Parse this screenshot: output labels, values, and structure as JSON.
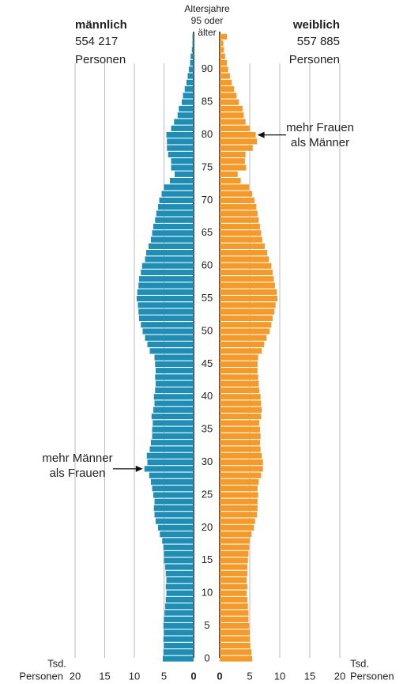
{
  "chart_data": {
    "type": "pyramid",
    "ylabel": "Altersjahre",
    "categories": [
      "0",
      null,
      null,
      null,
      null,
      "5",
      null,
      null,
      null,
      null,
      "10",
      null,
      null,
      null,
      null,
      "15",
      null,
      null,
      null,
      null,
      "20",
      null,
      null,
      null,
      null,
      "25",
      null,
      null,
      null,
      null,
      "30",
      null,
      null,
      null,
      null,
      "35",
      null,
      null,
      null,
      null,
      "40",
      null,
      null,
      null,
      null,
      "45",
      null,
      null,
      null,
      null,
      "50",
      null,
      null,
      null,
      null,
      "55",
      null,
      null,
      null,
      null,
      "60",
      null,
      null,
      null,
      null,
      "65",
      null,
      null,
      null,
      null,
      "70",
      null,
      null,
      null,
      null,
      "75",
      null,
      null,
      null,
      null,
      "80",
      null,
      null,
      null,
      null,
      "85",
      null,
      null,
      null,
      null,
      "90",
      null,
      null,
      null,
      null,
      "95 oder älter"
    ],
    "series": [
      {
        "name": "männlich",
        "total": "554 217",
        "unit": "Personen",
        "color": "#1f8db4",
        "values": [
          5.2,
          5.1,
          5.0,
          5.1,
          5.0,
          5.1,
          5.0,
          4.9,
          4.8,
          4.7,
          4.6,
          4.7,
          4.6,
          4.7,
          4.8,
          5.0,
          5.0,
          5.1,
          5.3,
          5.7,
          6.0,
          6.4,
          6.6,
          6.7,
          6.6,
          6.8,
          7.0,
          7.2,
          7.5,
          8.3,
          7.8,
          7.9,
          7.4,
          7.2,
          7.0,
          7.0,
          6.9,
          7.1,
          6.8,
          6.6,
          6.7,
          6.5,
          6.4,
          6.5,
          6.4,
          6.5,
          6.6,
          7.4,
          7.8,
          8.2,
          8.6,
          8.9,
          9.2,
          9.3,
          9.4,
          9.6,
          9.5,
          9.3,
          9.2,
          8.9,
          8.7,
          8.2,
          8.0,
          7.6,
          7.2,
          7.0,
          6.8,
          6.5,
          6.3,
          6.0,
          5.8,
          5.4,
          5.0,
          4.0,
          3.2,
          3.8,
          3.8,
          4.3,
          4.5,
          4.5,
          4.6,
          3.8,
          3.3,
          2.7,
          2.5,
          2.0,
          1.8,
          1.5,
          1.2,
          1.0,
          0.8,
          0.6,
          0.5,
          0.3,
          0.2,
          0.2
        ]
      },
      {
        "name": "weiblich",
        "total": "557 885",
        "unit": "Personen",
        "color": "#f39a2b",
        "values": [
          5.4,
          5.3,
          5.1,
          5.0,
          5.0,
          4.9,
          4.8,
          4.8,
          4.7,
          4.6,
          4.5,
          4.6,
          4.5,
          4.6,
          4.6,
          4.7,
          4.8,
          4.9,
          5.0,
          5.3,
          5.7,
          5.9,
          6.2,
          6.3,
          6.3,
          6.4,
          6.3,
          6.5,
          6.9,
          7.2,
          7.2,
          7.0,
          6.8,
          6.7,
          6.8,
          6.7,
          6.6,
          6.9,
          7.0,
          6.9,
          6.8,
          6.6,
          6.5,
          6.4,
          6.3,
          6.3,
          6.4,
          7.0,
          7.4,
          7.8,
          8.3,
          8.6,
          8.8,
          9.1,
          9.3,
          9.6,
          9.5,
          9.2,
          9.0,
          8.8,
          8.6,
          8.2,
          7.9,
          7.5,
          7.1,
          6.9,
          6.7,
          6.5,
          6.3,
          6.1,
          5.8,
          5.4,
          4.9,
          3.5,
          3.0,
          4.4,
          4.2,
          4.3,
          5.5,
          6.2,
          6.0,
          5.0,
          4.3,
          4.0,
          3.8,
          3.2,
          2.8,
          2.4,
          2.0,
          1.7,
          1.4,
          1.2,
          0.9,
          0.7,
          0.6,
          1.2
        ]
      }
    ],
    "xlim": [
      0,
      20
    ],
    "xticks": [
      0,
      5,
      10,
      15,
      20
    ],
    "grid": true,
    "xlabel": {
      "line1": "Tsd.",
      "line2": "Personen"
    },
    "annotations": [
      {
        "lines": [
          "mehr Frauen",
          "als Männer"
        ],
        "series": 1,
        "index": 80
      },
      {
        "lines": [
          "mehr Männer",
          "als Frauen"
        ],
        "series": 0,
        "index": 29
      }
    ]
  }
}
